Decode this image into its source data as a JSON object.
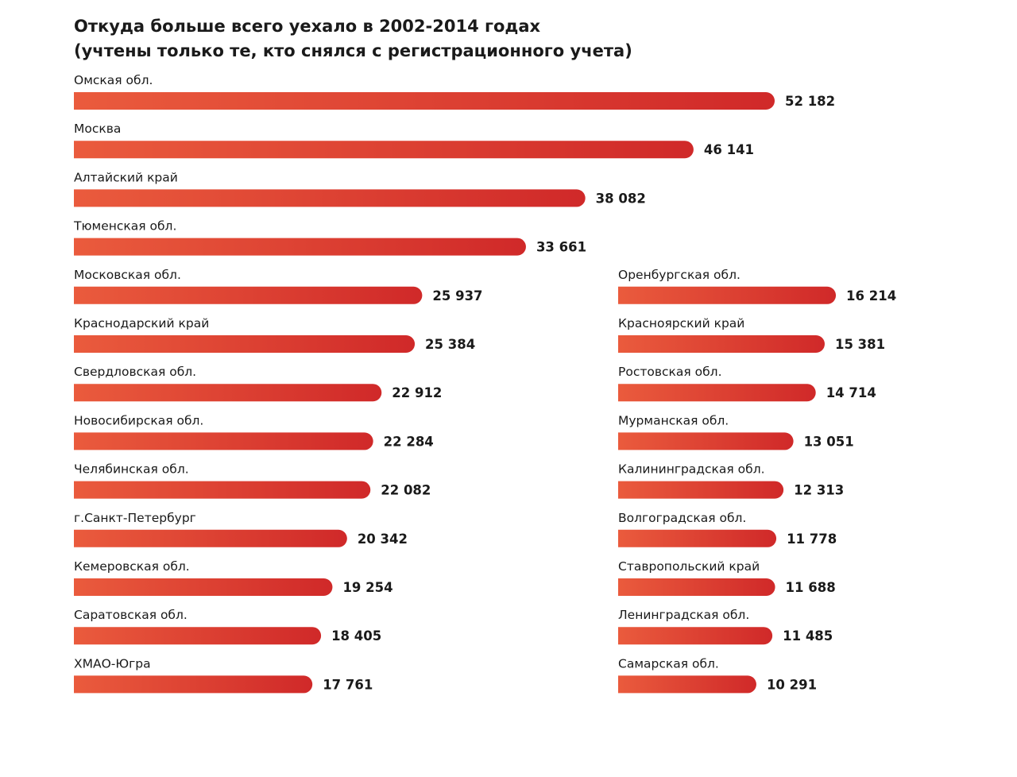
{
  "chart_data": {
    "type": "bar",
    "title": "Откуда больше всего уехало в 2002-2014 годах",
    "subtitle": "(учтены только те, кто снялся с регистрационного учета)",
    "categories": [
      "Омская обл.",
      "Москва",
      "Алтайский край",
      "Тюменская обл.",
      "Московская обл.",
      "Краснодарский край",
      "Свердловская обл.",
      "Новосибирская обл.",
      "Челябинская обл.",
      "г.Санкт-Петербург",
      "Кемеровская обл.",
      "Саратовская обл.",
      "ХМАО-Югра",
      "Оренбургская обл.",
      "Красноярский край",
      "Ростовская обл.",
      "Мурманская обл.",
      "Калининградская обл.",
      "Волгоградская обл.",
      "Ставропольский край",
      "Ленинградская обл.",
      "Самарская обл."
    ],
    "values": [
      52182,
      46141,
      38082,
      33661,
      25937,
      25384,
      22912,
      22284,
      22082,
      20342,
      19254,
      18405,
      17761,
      16214,
      15381,
      14714,
      13051,
      12313,
      11778,
      11688,
      11485,
      10291
    ],
    "value_labels": [
      "52 182",
      "46 141",
      "38 082",
      "33 661",
      "25 937",
      "25 384",
      "22 912",
      "22 284",
      "22 082",
      "20 342",
      "19 254",
      "18 405",
      "17 761",
      "16 214",
      "15 381",
      "14 714",
      "13 051",
      "12 313",
      "11 778",
      "11 688",
      "11 485",
      "10 291"
    ],
    "gradient": [
      "#ea5b3d",
      "#d02929"
    ]
  }
}
